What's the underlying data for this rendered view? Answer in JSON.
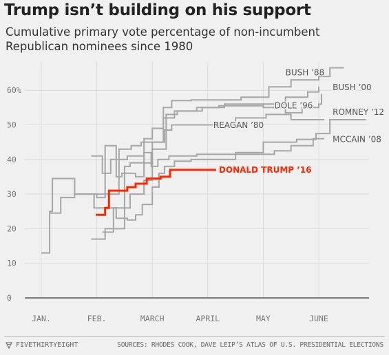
{
  "header": {
    "title": "Trump isn’t building on his support",
    "subtitle": "Cumulative primary vote percentage of non-incumbent Republican nominees since 1980"
  },
  "footer": {
    "brand": "FIVETHIRTYEIGHT",
    "source": "SOURCES: RHODES COOK, DAVE LEIP’S ATLAS OF U.S. PRESIDENTIAL ELECTIONS"
  },
  "colors": {
    "background": "#f0f0f0",
    "grid": "#dcdcdc",
    "baseline": "#333333",
    "series_gray": "#a6a6a6",
    "highlight": "#ff2700",
    "label_gray": "#555555"
  },
  "chart_data": {
    "type": "line",
    "xlabel": "",
    "ylabel": "",
    "xlim": [
      0,
      6
    ],
    "ylim": [
      0,
      70
    ],
    "x_ticks": [
      {
        "x": 0,
        "label": "JAN."
      },
      {
        "x": 1,
        "label": "FEB."
      },
      {
        "x": 2,
        "label": "MARCH"
      },
      {
        "x": 3,
        "label": "APRIL"
      },
      {
        "x": 4,
        "label": "MAY"
      },
      {
        "x": 5,
        "label": "JUNE"
      }
    ],
    "y_ticks": [
      {
        "y": 0,
        "label": "0"
      },
      {
        "y": 10,
        "label": "10"
      },
      {
        "y": 20,
        "label": "20"
      },
      {
        "y": 30,
        "label": "30"
      },
      {
        "y": 40,
        "label": "40"
      },
      {
        "y": 50,
        "label": "50"
      },
      {
        "y": 60,
        "label": "60%"
      }
    ],
    "grid": true,
    "legend": "direct labels",
    "series": [
      {
        "name": "BUSH ’88",
        "label_at": [
          4.4,
          65.1
        ],
        "points": [
          [
            0.9,
            41
          ],
          [
            1.1,
            41
          ],
          [
            1.1,
            36
          ],
          [
            1.25,
            36
          ],
          [
            1.25,
            40
          ],
          [
            1.55,
            40
          ],
          [
            1.55,
            41
          ],
          [
            1.85,
            41
          ],
          [
            1.85,
            46
          ],
          [
            2.0,
            46
          ],
          [
            2.0,
            49
          ],
          [
            2.2,
            49
          ],
          [
            2.2,
            55
          ],
          [
            2.35,
            55
          ],
          [
            2.35,
            57
          ],
          [
            2.7,
            57
          ],
          [
            2.7,
            57.2
          ],
          [
            3.6,
            57.2
          ],
          [
            3.6,
            58
          ],
          [
            4.1,
            58
          ],
          [
            4.1,
            61
          ],
          [
            4.5,
            61
          ],
          [
            4.5,
            63
          ],
          [
            5.0,
            63
          ],
          [
            5.0,
            64
          ],
          [
            5.2,
            64
          ],
          [
            5.2,
            66.5
          ],
          [
            5.45,
            66.5
          ]
        ]
      },
      {
        "name": "BUSH ’00",
        "label_at": [
          5.25,
          60.8
        ],
        "points": [
          [
            0.9,
            17
          ],
          [
            1.15,
            17
          ],
          [
            1.15,
            20
          ],
          [
            1.5,
            20
          ],
          [
            1.5,
            38
          ],
          [
            1.6,
            38
          ],
          [
            1.6,
            39
          ],
          [
            2.0,
            39
          ],
          [
            2.0,
            43
          ],
          [
            2.25,
            43
          ],
          [
            2.25,
            53
          ],
          [
            2.45,
            53
          ],
          [
            2.45,
            54
          ],
          [
            2.9,
            54
          ],
          [
            2.9,
            55
          ],
          [
            3.2,
            55
          ],
          [
            3.2,
            55.5
          ],
          [
            4.0,
            55.5
          ],
          [
            4.0,
            56
          ],
          [
            4.4,
            56
          ],
          [
            4.4,
            58
          ],
          [
            4.8,
            58
          ],
          [
            4.8,
            59.5
          ],
          [
            5.0,
            59.5
          ],
          [
            5.0,
            61
          ]
        ]
      },
      {
        "name": "DOLE ’96",
        "label_at": [
          4.2,
          55.6
        ],
        "points": [
          [
            1.1,
            19
          ],
          [
            1.3,
            19
          ],
          [
            1.3,
            26
          ],
          [
            1.6,
            26
          ],
          [
            1.6,
            30
          ],
          [
            1.85,
            30
          ],
          [
            1.85,
            34
          ],
          [
            2.0,
            34
          ],
          [
            2.0,
            45
          ],
          [
            2.2,
            45
          ],
          [
            2.2,
            52
          ],
          [
            2.4,
            52
          ],
          [
            2.4,
            54
          ],
          [
            2.8,
            54
          ],
          [
            2.8,
            55
          ],
          [
            3.3,
            55
          ],
          [
            3.3,
            56
          ],
          [
            4.0,
            56
          ],
          [
            4.0,
            55
          ],
          [
            4.4,
            55
          ],
          [
            4.4,
            53.5
          ],
          [
            4.7,
            53.5
          ],
          [
            4.7,
            55
          ],
          [
            5.0,
            55
          ],
          [
            5.0,
            56
          ],
          [
            5.05,
            56
          ],
          [
            5.05,
            59
          ]
        ]
      },
      {
        "name": "ROMNEY ’12",
        "label_at": [
          5.25,
          53.7
        ],
        "points": [
          [
            0.85,
            30
          ],
          [
            1.0,
            30
          ],
          [
            1.0,
            29
          ],
          [
            1.15,
            29
          ],
          [
            1.15,
            44
          ],
          [
            1.35,
            44
          ],
          [
            1.35,
            35
          ],
          [
            1.45,
            35
          ],
          [
            1.45,
            36
          ],
          [
            1.7,
            36
          ],
          [
            1.7,
            35
          ],
          [
            1.85,
            35
          ],
          [
            1.85,
            42
          ],
          [
            1.98,
            42
          ],
          [
            1.98,
            38
          ],
          [
            2.1,
            38
          ],
          [
            2.1,
            40
          ],
          [
            2.3,
            40
          ],
          [
            2.3,
            41
          ],
          [
            2.8,
            41
          ],
          [
            2.8,
            41.5
          ],
          [
            3.5,
            41.5
          ],
          [
            3.5,
            42
          ],
          [
            4.0,
            42
          ],
          [
            4.0,
            45
          ],
          [
            4.6,
            45
          ],
          [
            4.6,
            45.8
          ],
          [
            4.95,
            45.8
          ],
          [
            4.95,
            47.5
          ],
          [
            5.2,
            47.5
          ],
          [
            5.2,
            51.5
          ],
          [
            5.85,
            51.5
          ]
        ]
      },
      {
        "name": "REAGAN ’80",
        "label_at": [
          3.1,
          49.9
        ],
        "points": [
          [
            0.15,
            24.5
          ],
          [
            0.35,
            24.5
          ],
          [
            0.35,
            29
          ],
          [
            0.6,
            29
          ],
          [
            0.6,
            30
          ],
          [
            1.4,
            30
          ],
          [
            1.4,
            43
          ],
          [
            1.62,
            43
          ],
          [
            1.62,
            44
          ],
          [
            1.8,
            44
          ],
          [
            1.8,
            45
          ],
          [
            2.22,
            45
          ],
          [
            2.22,
            48.5
          ],
          [
            2.35,
            48.5
          ],
          [
            2.35,
            50
          ],
          [
            3.5,
            50
          ],
          [
            3.5,
            52
          ],
          [
            4.05,
            52
          ],
          [
            4.05,
            53
          ],
          [
            4.5,
            53
          ],
          [
            4.5,
            51.5
          ],
          [
            5.1,
            51.5
          ]
        ]
      },
      {
        "name": "MCCAIN ’08",
        "label_at": [
          5.25,
          45.8
        ],
        "points": [
          [
            0.0,
            13
          ],
          [
            0.15,
            13
          ],
          [
            0.15,
            25
          ],
          [
            0.2,
            25
          ],
          [
            0.2,
            34.5
          ],
          [
            0.6,
            34.5
          ],
          [
            0.6,
            30
          ],
          [
            0.95,
            30
          ],
          [
            0.95,
            26
          ],
          [
            1.35,
            26
          ],
          [
            1.35,
            23
          ],
          [
            1.55,
            23
          ],
          [
            1.55,
            22.5
          ],
          [
            1.7,
            22.5
          ],
          [
            1.7,
            24
          ],
          [
            1.82,
            24
          ],
          [
            1.82,
            27
          ],
          [
            2.0,
            27
          ],
          [
            2.0,
            32
          ],
          [
            2.12,
            32
          ],
          [
            2.12,
            36
          ],
          [
            2.22,
            36
          ],
          [
            2.22,
            38
          ],
          [
            2.4,
            38
          ],
          [
            2.4,
            39.5
          ],
          [
            2.7,
            39.5
          ],
          [
            2.7,
            40
          ],
          [
            3.5,
            40
          ],
          [
            3.5,
            41.5
          ],
          [
            4.2,
            41.5
          ],
          [
            4.2,
            42.5
          ],
          [
            4.5,
            42.5
          ],
          [
            4.5,
            44
          ],
          [
            4.9,
            44
          ],
          [
            4.9,
            46
          ],
          [
            5.1,
            46
          ]
        ]
      },
      {
        "name": "DONALD TRUMP ’16",
        "highlight": true,
        "label_at": [
          3.2,
          37
        ],
        "points": [
          [
            0.98,
            24
          ],
          [
            1.15,
            24
          ],
          [
            1.15,
            26
          ],
          [
            1.22,
            26
          ],
          [
            1.22,
            31
          ],
          [
            1.55,
            31
          ],
          [
            1.55,
            32
          ],
          [
            1.7,
            32
          ],
          [
            1.7,
            33
          ],
          [
            1.9,
            33
          ],
          [
            1.9,
            34.5
          ],
          [
            2.15,
            34.5
          ],
          [
            2.15,
            35
          ],
          [
            2.32,
            35
          ],
          [
            2.32,
            37
          ],
          [
            3.15,
            37
          ]
        ]
      }
    ]
  }
}
